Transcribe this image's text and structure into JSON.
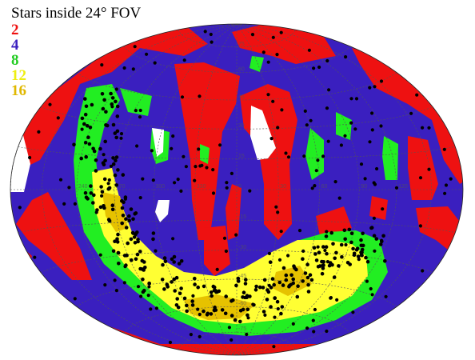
{
  "title": "Stars inside 24° FOV",
  "legend": [
    {
      "label": "2",
      "color": "#ee1111"
    },
    {
      "label": "4",
      "color": "#3a1fbf"
    },
    {
      "label": "8",
      "color": "#22cc22"
    },
    {
      "label": "12",
      "color": "#eeee11"
    },
    {
      "label": "16",
      "color": "#e0b800"
    }
  ],
  "colors": {
    "red": "#ee1111",
    "blue": "#3a1fbf",
    "green": "#22ee22",
    "yellow": "#ffff33",
    "gold": "#e6c200",
    "white": "#ffffff",
    "star": "#000000",
    "grid": "#555555"
  },
  "projection": "Hammer-Aitoff all-sky",
  "graticule_labels": [
    "75",
    "60",
    "45",
    "30",
    "15",
    "0",
    "-15",
    "-30",
    "-45",
    "-60",
    "-75",
    "120",
    "90",
    "60",
    "30",
    "330",
    "300",
    "270",
    "240"
  ]
}
